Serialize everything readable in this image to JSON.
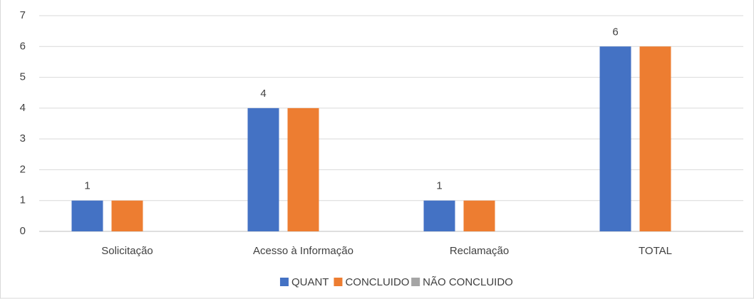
{
  "chart_data": {
    "type": "bar",
    "categories": [
      "Solicitação",
      "Acesso à Informação",
      "Reclamação",
      "TOTAL"
    ],
    "series": [
      {
        "name": "QUANT",
        "color": "#4472c4",
        "values": [
          1,
          4,
          1,
          6
        ],
        "data_labels": true
      },
      {
        "name": "CONCLUIDO",
        "color": "#ed7d31",
        "values": [
          1,
          4,
          1,
          6
        ],
        "data_labels": false
      },
      {
        "name": "NÃO CONCLUIDO",
        "color": "#a5a5a5",
        "values": [
          0,
          0,
          0,
          0
        ],
        "data_labels": false
      }
    ],
    "ylim": [
      0,
      7
    ],
    "yticks": [
      0,
      1,
      2,
      3,
      4,
      5,
      6,
      7
    ],
    "grid": true,
    "legend": "bottom"
  }
}
